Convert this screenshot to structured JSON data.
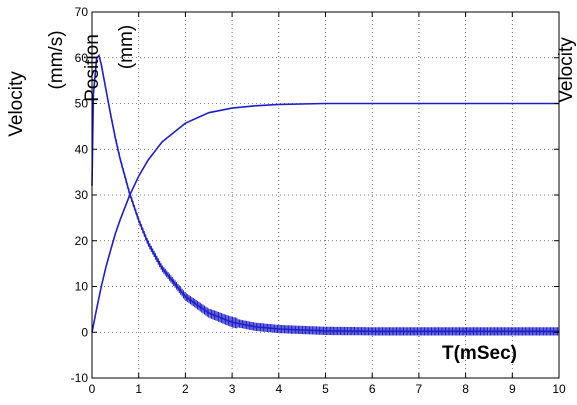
{
  "chart_data": {
    "type": "line",
    "title": "",
    "xlabel": "T(mSec)",
    "ylabel_left_lines": [
      "Velocity",
      "(mm/s)",
      "Position",
      "(mm)"
    ],
    "ylabel_right": "Velocity",
    "xlim": [
      0,
      10
    ],
    "ylim": [
      -10,
      70
    ],
    "xticks": [
      0,
      1,
      2,
      3,
      4,
      5,
      6,
      7,
      8,
      9,
      10
    ],
    "yticks": [
      -10,
      0,
      10,
      20,
      30,
      40,
      50,
      60,
      70
    ],
    "grid": true,
    "line_color": "#1f1fc8",
    "series": [
      {
        "x": [
          0,
          0.1,
          0.2,
          0.3,
          0.4,
          0.5,
          0.6,
          0.8,
          1.0,
          1.2,
          1.5,
          2.0,
          2.5,
          3.0,
          3.5,
          4.0,
          5.0,
          6.0,
          7.0,
          8.0,
          9.0,
          10.0
        ],
        "y": [
          0,
          5.2,
          10.0,
          14.3,
          18.0,
          21.5,
          24.5,
          29.8,
          34.1,
          37.6,
          41.6,
          45.7,
          48.0,
          49.0,
          49.5,
          49.8,
          50.0,
          50.0,
          50.0,
          50.0,
          50.0,
          50.0
        ]
      },
      {
        "x": [
          0,
          0.03,
          0.1,
          0.15,
          0.2,
          0.3,
          0.4,
          0.5,
          0.6,
          0.8,
          1.0,
          1.2,
          1.5,
          2.0,
          2.5,
          3.0,
          3.5,
          4.0,
          5.0,
          6.0,
          7.0,
          8.0,
          9.0,
          10.0
        ],
        "y": [
          32,
          52,
          60,
          60.5,
          58.5,
          53,
          47.5,
          42.5,
          38,
          30.5,
          24.5,
          19.5,
          14,
          7.8,
          4.2,
          2.2,
          1.2,
          0.7,
          0.3,
          0.2,
          0.2,
          0.2,
          0.2,
          0.2
        ]
      }
    ]
  }
}
